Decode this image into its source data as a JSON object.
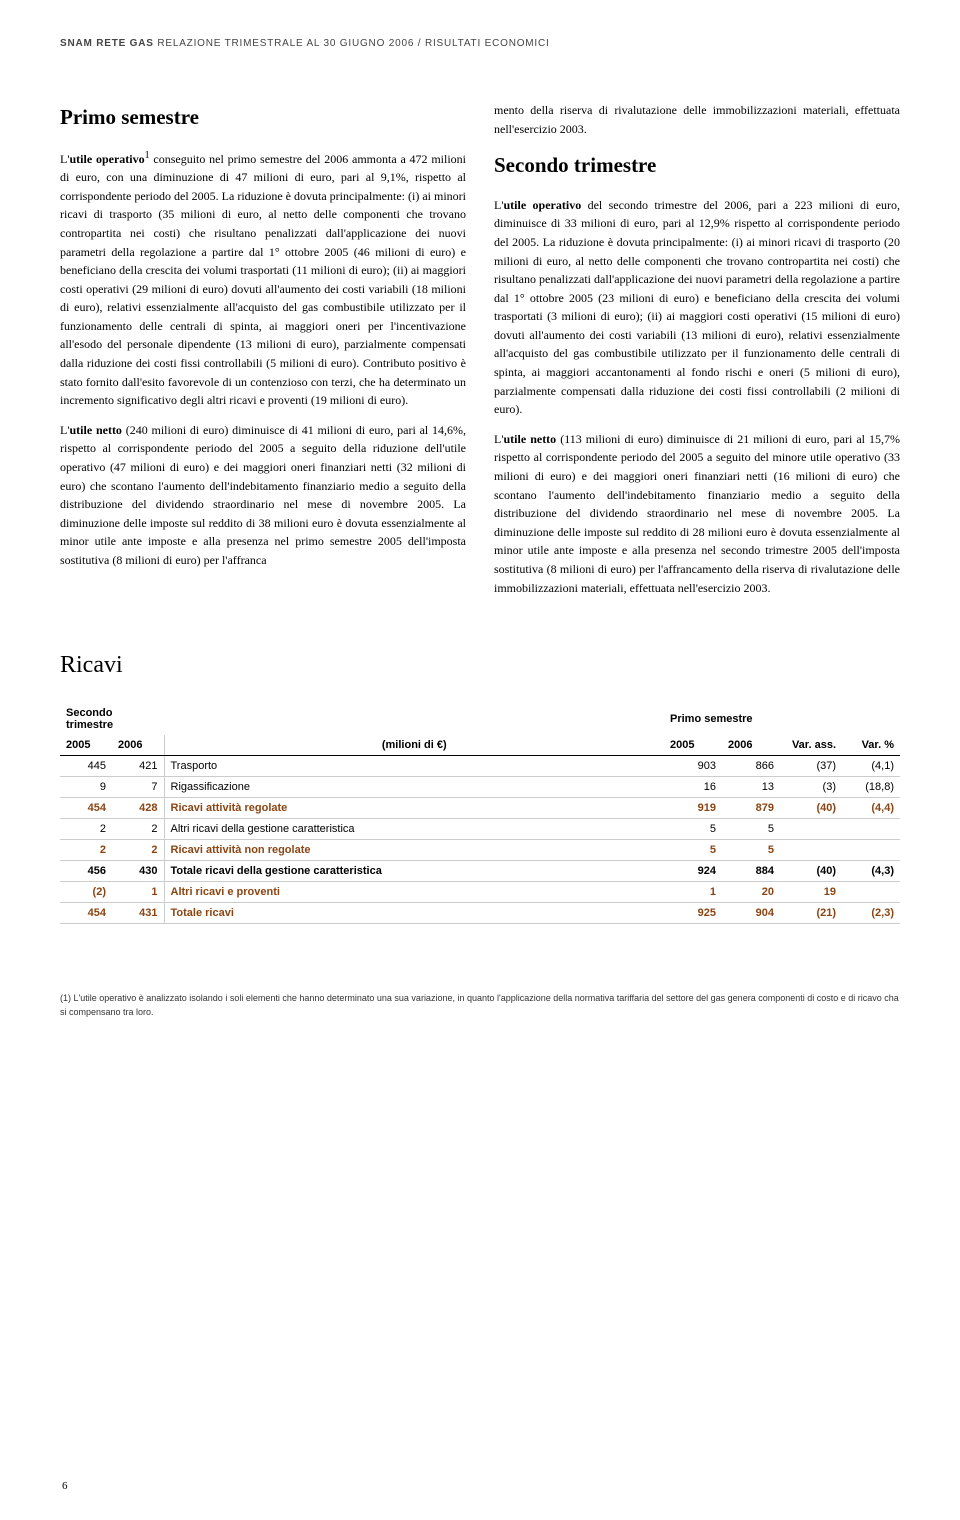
{
  "header": {
    "company": "SNAM RETE GAS",
    "report": "RELAZIONE TRIMESTRALE AL 30 GIUGNO 2006",
    "section": "RISULTATI ECONOMICI"
  },
  "left_col": {
    "title": "Primo semestre",
    "p1_a": "L'",
    "p1_b": "utile operativo",
    "p1_sup": "1",
    "p1_c": " conseguito nel primo semestre del 2006 ammonta a 472 milioni di euro, con una diminuzione di 47 milioni di euro, pari al 9,1%, rispetto al corrispondente periodo del 2005. La riduzione è dovuta principalmente: (i) ai minori ricavi di trasporto (35 milioni di euro, al netto delle componenti che trovano contropartita nei costi) che risultano penalizzati dall'applicazione dei nuovi parametri della regolazione a partire dal 1° ottobre 2005 (46 milioni di euro) e beneficiano della crescita dei volumi trasportati (11 milioni di euro); (ii) ai maggiori costi operativi (29 milioni di euro) dovuti all'aumento dei costi variabili (18 milioni di euro), relativi essenzialmente all'acquisto del gas combustibile utilizzato per il funzionamento delle centrali di spinta, ai maggiori oneri per l'incentivazione all'esodo del personale dipendente (13 milioni di euro), parzialmente compensati dalla riduzione dei costi fissi controllabili (5 milioni di euro). Contributo positivo è stato fornito dall'esito favorevole di un contenzioso con terzi, che ha determinato un incremento significativo degli altri ricavi e proventi (19 milioni di euro).",
    "p2_a": "L'",
    "p2_b": "utile netto",
    "p2_c": " (240 milioni di euro) diminuisce di 41 milioni di euro, pari al 14,6%, rispetto al corrispondente periodo del 2005 a seguito della riduzione dell'utile operativo (47 milioni di euro) e dei maggiori oneri finanziari netti (32 milioni di euro) che scontano l'aumento dell'indebitamento finanziario medio a seguito della distribuzione del dividendo straordinario nel mese di novembre 2005. La diminuzione delle imposte sul reddito di 38 milioni euro è dovuta essenzialmente al minor utile ante imposte e alla presenza nel primo semestre 2005 dell'imposta sostitutiva (8 milioni di euro) per l'affranca"
  },
  "right_col": {
    "p0": "mento della riserva di rivalutazione delle immobilizzazioni materiali, effettuata nell'esercizio 2003.",
    "title": "Secondo trimestre",
    "p1_a": "L'",
    "p1_b": "utile operativo",
    "p1_c": " del secondo trimestre del 2006, pari a 223 milioni di euro, diminuisce di 33 milioni di euro, pari al 12,9% rispetto al corrispondente periodo del 2005. La riduzione è dovuta principalmente: (i) ai minori ricavi di trasporto (20 milioni di euro, al netto delle componenti che trovano contropartita nei costi) che risultano penalizzati dall'applicazione dei nuovi parametri della regolazione a partire dal 1° ottobre 2005 (23 milioni di euro) e beneficiano della crescita dei volumi trasportati (3 milioni di euro); (ii) ai maggiori costi operativi (15 milioni di euro) dovuti all'aumento dei costi variabili (13 milioni di euro), relativi essenzialmente all'acquisto del gas combustibile utilizzato per il funzionamento delle centrali di spinta, ai maggiori accantonamenti al fondo rischi e oneri (5 milioni di euro), parzialmente compensati dalla riduzione dei costi fissi controllabili (2 milioni di euro).",
    "p2_a": "L'",
    "p2_b": "utile netto",
    "p2_c": " (113 milioni di euro) diminuisce di 21 milioni di euro, pari al 15,7% rispetto al corrispondente periodo del 2005 a seguito del minore utile operativo (33 milioni di euro) e dei maggiori oneri finanziari netti (16 milioni di euro) che scontano l'aumento dell'indebitamento finanziario medio a seguito della distribuzione del dividendo straordinario nel mese di novembre 2005. La diminuzione delle imposte sul reddito di 28 milioni euro è dovuta essenzialmente al minor utile ante imposte e alla presenza nel secondo trimestre 2005 dell'imposta sostitutiva (8 milioni di euro) per l'affrancamento della riserva di rivalutazione delle immobilizzazioni materiali, effettuata nell'esercizio 2003."
  },
  "ricavi": {
    "title": "Ricavi",
    "group_left": "Secondo trimestre",
    "group_right": "Primo semestre",
    "h_2005": "2005",
    "h_2006": "2006",
    "h_unit": "(milioni di €)",
    "h_var": "Var. ass.",
    "h_varp": "Var. %",
    "rows": [
      {
        "s05": "445",
        "s06": "421",
        "label": "Trasporto",
        "p05": "903",
        "p06": "866",
        "var": "(37)",
        "varp": "(4,1)",
        "cls": ""
      },
      {
        "s05": "9",
        "s06": "7",
        "label": "Rigassificazione",
        "p05": "16",
        "p06": "13",
        "var": "(3)",
        "varp": "(18,8)",
        "cls": ""
      },
      {
        "s05": "454",
        "s06": "428",
        "label": "Ricavi attività regolate",
        "p05": "919",
        "p06": "879",
        "var": "(40)",
        "varp": "(4,4)",
        "cls": "row-brown"
      },
      {
        "s05": "2",
        "s06": "2",
        "label": "Altri ricavi della gestione caratteristica",
        "p05": "5",
        "p06": "5",
        "var": "",
        "varp": "",
        "cls": ""
      },
      {
        "s05": "2",
        "s06": "2",
        "label": "Ricavi attività non regolate",
        "p05": "5",
        "p06": "5",
        "var": "",
        "varp": "",
        "cls": "row-brown"
      },
      {
        "s05": "456",
        "s06": "430",
        "label": "Totale ricavi della gestione caratteristica",
        "p05": "924",
        "p06": "884",
        "var": "(40)",
        "varp": "(4,3)",
        "cls": "row-bold"
      },
      {
        "s05": "(2)",
        "s06": "1",
        "label": "Altri ricavi e proventi",
        "p05": "1",
        "p06": "20",
        "var": "19",
        "varp": "",
        "cls": "row-brown"
      },
      {
        "s05": "454",
        "s06": "431",
        "label": "Totale ricavi",
        "p05": "925",
        "p06": "904",
        "var": "(21)",
        "varp": "(2,3)",
        "cls": "row-brown"
      }
    ]
  },
  "footnote": "(1) L'utile operativo è analizzato isolando i soli elementi che hanno determinato una sua variazione, in quanto l'applicazione della normativa tariffaria del settore del gas genera componenti di costo e di ricavo cha si compensano tra loro.",
  "page_num": "6"
}
